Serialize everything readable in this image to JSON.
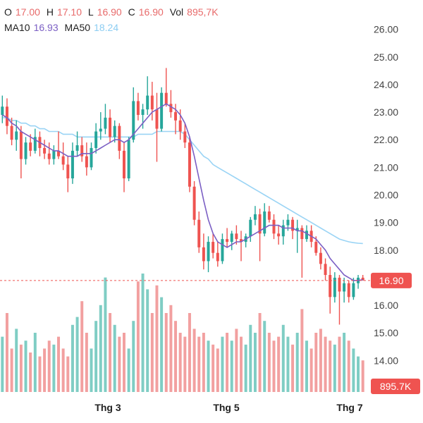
{
  "legend": {
    "o_label": "O",
    "o_value": "17.00",
    "h_label": "H",
    "h_value": "17.10",
    "l_label": "L",
    "l_value": "16.90",
    "c_label": "C",
    "c_value": "16.90",
    "vol_label": "Vol",
    "vol_value": "895,7K",
    "ma10_label": "MA10",
    "ma10_value": "16.93",
    "ma50_label": "MA50",
    "ma50_value": "18.24"
  },
  "colors": {
    "up": "#26a69a",
    "down": "#ef5350",
    "up_volume": "#7fcdc4",
    "down_volume": "#f2a0a0",
    "ma10": "#7b5fc4",
    "ma50": "#9ad4f5",
    "price_line": "#ef5350"
  },
  "chart_data": {
    "type": "candlestick",
    "y_ticks": [
      "26.00",
      "25.00",
      "24.00",
      "23.00",
      "22.00",
      "21.00",
      "20.00",
      "19.00",
      "18.00",
      "16.00",
      "15.00",
      "14.00"
    ],
    "x_ticks": [
      "Thg 3",
      "Thg 5",
      "Thg 7"
    ],
    "ylim": [
      13.6,
      26.4
    ],
    "current_price": 16.9,
    "current_price_label": "16.90",
    "current_volume_label": "895.7K",
    "ohlc": [
      [
        22.9,
        23.6,
        22.6,
        23.2
      ],
      [
        23.2,
        23.5,
        22.2,
        22.5
      ],
      [
        22.5,
        22.8,
        21.8,
        22.0
      ],
      [
        22.0,
        22.7,
        21.6,
        22.3
      ],
      [
        22.3,
        22.5,
        20.6,
        21.3
      ],
      [
        21.3,
        22.1,
        21.1,
        21.9
      ],
      [
        21.9,
        22.2,
        21.4,
        21.6
      ],
      [
        21.6,
        22.4,
        21.5,
        22.1
      ],
      [
        22.1,
        22.3,
        21.4,
        21.7
      ],
      [
        21.7,
        22.0,
        21.3,
        21.5
      ],
      [
        21.5,
        21.9,
        21.1,
        21.3
      ],
      [
        21.3,
        21.8,
        21.1,
        21.6
      ],
      [
        21.6,
        22.3,
        21.3,
        21.4
      ],
      [
        21.4,
        21.9,
        20.9,
        21.1
      ],
      [
        21.1,
        21.4,
        20.1,
        20.6
      ],
      [
        20.6,
        21.9,
        20.4,
        21.6
      ],
      [
        21.6,
        22.3,
        21.4,
        21.8
      ],
      [
        21.8,
        22.1,
        21.2,
        21.4
      ],
      [
        21.4,
        21.9,
        20.7,
        21.0
      ],
      [
        21.0,
        21.9,
        20.9,
        21.7
      ],
      [
        21.7,
        22.6,
        21.5,
        22.3
      ],
      [
        22.3,
        23.0,
        22.0,
        22.4
      ],
      [
        22.4,
        23.3,
        22.2,
        22.8
      ],
      [
        22.8,
        23.1,
        21.9,
        22.1
      ],
      [
        22.1,
        22.7,
        21.9,
        22.5
      ],
      [
        22.5,
        22.6,
        21.3,
        21.6
      ],
      [
        21.6,
        21.9,
        20.1,
        20.6
      ],
      [
        20.6,
        22.1,
        20.5,
        22.0
      ],
      [
        22.0,
        23.9,
        21.9,
        23.4
      ],
      [
        23.4,
        23.7,
        22.7,
        22.9
      ],
      [
        22.9,
        23.3,
        22.4,
        23.1
      ],
      [
        23.1,
        24.3,
        22.9,
        23.6
      ],
      [
        23.6,
        24.1,
        22.7,
        23.1
      ],
      [
        23.1,
        23.7,
        21.2,
        22.4
      ],
      [
        22.4,
        23.9,
        22.3,
        23.7
      ],
      [
        23.7,
        24.6,
        23.2,
        23.3
      ],
      [
        23.3,
        23.8,
        22.8,
        23.0
      ],
      [
        23.0,
        23.3,
        22.2,
        22.7
      ],
      [
        22.7,
        23.1,
        22.0,
        22.3
      ],
      [
        22.3,
        22.6,
        21.7,
        21.9
      ],
      [
        21.9,
        22.1,
        20.1,
        20.3
      ],
      [
        20.3,
        20.5,
        18.9,
        19.1
      ],
      [
        19.1,
        19.4,
        17.9,
        18.1
      ],
      [
        18.1,
        18.6,
        17.3,
        17.6
      ],
      [
        17.6,
        18.5,
        17.2,
        18.3
      ],
      [
        18.3,
        18.6,
        17.7,
        17.9
      ],
      [
        17.9,
        18.3,
        17.4,
        17.6
      ],
      [
        17.6,
        18.6,
        17.5,
        18.4
      ],
      [
        18.4,
        18.8,
        18.1,
        18.3
      ],
      [
        18.3,
        18.7,
        18.0,
        18.6
      ],
      [
        18.6,
        18.9,
        18.2,
        18.4
      ],
      [
        18.4,
        18.7,
        17.6,
        18.3
      ],
      [
        18.3,
        18.6,
        18.1,
        18.5
      ],
      [
        18.5,
        19.2,
        18.3,
        19.1
      ],
      [
        19.1,
        19.6,
        18.9,
        19.3
      ],
      [
        19.3,
        19.5,
        17.6,
        18.6
      ],
      [
        18.6,
        19.7,
        18.5,
        19.4
      ],
      [
        19.4,
        19.6,
        19.0,
        19.1
      ],
      [
        19.1,
        19.3,
        18.4,
        18.6
      ],
      [
        18.6,
        18.9,
        18.2,
        18.5
      ],
      [
        18.5,
        19.1,
        18.2,
        18.9
      ],
      [
        18.9,
        19.3,
        18.7,
        19.1
      ],
      [
        19.1,
        19.2,
        18.4,
        18.7
      ],
      [
        18.7,
        19.1,
        17.9,
        18.8
      ],
      [
        18.8,
        18.9,
        17.0,
        18.4
      ],
      [
        18.4,
        18.9,
        18.3,
        18.7
      ],
      [
        18.7,
        18.9,
        18.1,
        18.3
      ],
      [
        18.3,
        18.5,
        17.8,
        17.9
      ],
      [
        17.9,
        18.1,
        17.3,
        17.5
      ],
      [
        17.5,
        17.7,
        16.9,
        17.1
      ],
      [
        17.1,
        17.4,
        15.7,
        16.3
      ],
      [
        16.3,
        17.2,
        16.1,
        17.0
      ],
      [
        17.0,
        17.1,
        15.3,
        16.5
      ],
      [
        16.5,
        17.0,
        16.1,
        16.8
      ],
      [
        16.8,
        16.9,
        16.1,
        16.3
      ],
      [
        16.3,
        17.0,
        16.2,
        16.8
      ],
      [
        16.8,
        17.1,
        16.6,
        17.0
      ],
      [
        17.0,
        17.1,
        16.9,
        16.9
      ]
    ],
    "volume": [
      28,
      40,
      22,
      32,
      24,
      26,
      20,
      30,
      18,
      22,
      26,
      24,
      28,
      22,
      18,
      34,
      38,
      46,
      30,
      22,
      36,
      44,
      58,
      40,
      34,
      28,
      30,
      22,
      36,
      56,
      60,
      52,
      40,
      54,
      48,
      40,
      44,
      36,
      30,
      28,
      40,
      32,
      28,
      30,
      26,
      24,
      22,
      28,
      30,
      26,
      32,
      28,
      24,
      34,
      30,
      40,
      36,
      30,
      26,
      28,
      34,
      28,
      24,
      30,
      42,
      26,
      22,
      30,
      32,
      28,
      26,
      24,
      28,
      30,
      26,
      22,
      18,
      16
    ],
    "ma10": [
      22.9,
      22.8,
      22.6,
      22.5,
      22.3,
      22.2,
      22.1,
      22.0,
      21.9,
      21.8,
      21.7,
      21.6,
      21.6,
      21.5,
      21.4,
      21.4,
      21.4,
      21.5,
      21.5,
      21.5,
      21.6,
      21.7,
      21.8,
      21.9,
      22.0,
      22.0,
      21.9,
      22.0,
      22.2,
      22.4,
      22.6,
      22.8,
      23.0,
      23.1,
      23.2,
      23.3,
      23.2,
      23.1,
      22.9,
      22.6,
      22.1,
      21.4,
      20.6,
      19.8,
      19.1,
      18.6,
      18.3,
      18.2,
      18.1,
      18.2,
      18.3,
      18.3,
      18.4,
      18.5,
      18.6,
      18.7,
      18.8,
      18.9,
      18.9,
      18.9,
      18.8,
      18.8,
      18.8,
      18.7,
      18.7,
      18.6,
      18.5,
      18.4,
      18.2,
      18.0,
      17.7,
      17.5,
      17.3,
      17.1,
      17.0,
      16.9,
      16.9,
      16.93
    ],
    "ma50": [
      22.8,
      22.8,
      22.7,
      22.7,
      22.6,
      22.6,
      22.5,
      22.5,
      22.4,
      22.4,
      22.3,
      22.3,
      22.3,
      22.2,
      22.2,
      22.2,
      22.1,
      22.1,
      22.1,
      22.1,
      22.1,
      22.1,
      22.1,
      22.1,
      22.1,
      22.1,
      22.1,
      22.1,
      22.1,
      22.2,
      22.2,
      22.2,
      22.2,
      22.3,
      22.3,
      22.3,
      22.3,
      22.3,
      22.3,
      22.2,
      22.0,
      21.8,
      21.6,
      21.4,
      21.3,
      21.1,
      21.0,
      20.9,
      20.8,
      20.7,
      20.6,
      20.5,
      20.4,
      20.3,
      20.2,
      20.1,
      20.0,
      19.9,
      19.8,
      19.7,
      19.6,
      19.5,
      19.4,
      19.3,
      19.2,
      19.1,
      19.0,
      18.9,
      18.8,
      18.7,
      18.6,
      18.5,
      18.4,
      18.35,
      18.3,
      18.27,
      18.25,
      18.24
    ]
  }
}
